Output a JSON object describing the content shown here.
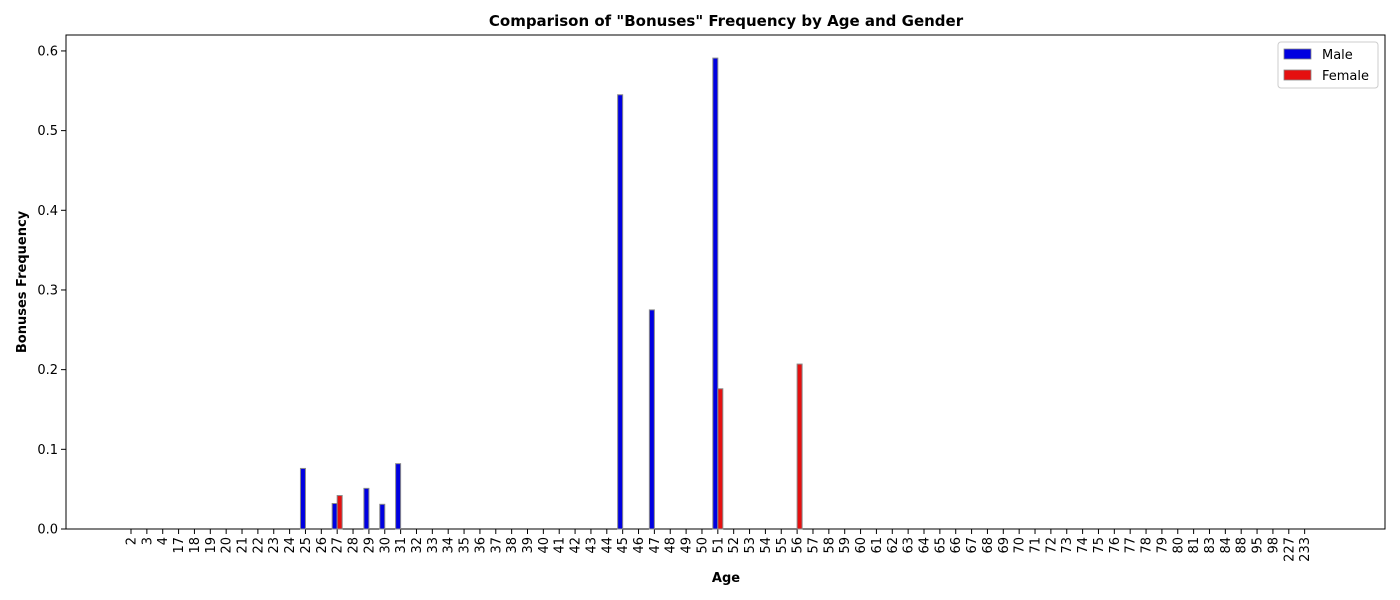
{
  "chart_data": {
    "type": "bar",
    "title": "Comparison of \"Bonuses\" Frequency by Age and Gender",
    "xlabel": "Age",
    "ylabel": "Bonuses Frequency",
    "ylim": [
      0,
      0.62
    ],
    "yticks": [
      0.0,
      0.1,
      0.2,
      0.3,
      0.4,
      0.5,
      0.6
    ],
    "ytick_labels": [
      "0.0",
      "0.1",
      "0.2",
      "0.3",
      "0.4",
      "0.5",
      "0.6"
    ],
    "grid": false,
    "legend_position": "top-right",
    "categories": [
      "2",
      "3",
      "4",
      "17",
      "18",
      "19",
      "20",
      "21",
      "22",
      "23",
      "24",
      "25",
      "26",
      "27",
      "28",
      "29",
      "30",
      "31",
      "32",
      "33",
      "34",
      "35",
      "36",
      "37",
      "38",
      "39",
      "40",
      "41",
      "42",
      "43",
      "44",
      "45",
      "46",
      "47",
      "48",
      "49",
      "50",
      "51",
      "52",
      "53",
      "54",
      "55",
      "56",
      "57",
      "58",
      "59",
      "60",
      "61",
      "62",
      "63",
      "64",
      "65",
      "66",
      "67",
      "68",
      "69",
      "70",
      "71",
      "72",
      "73",
      "74",
      "75",
      "76",
      "77",
      "78",
      "79",
      "80",
      "81",
      "83",
      "84",
      "88",
      "95",
      "98",
      "227",
      "233"
    ],
    "series": [
      {
        "name": "Male",
        "color": "#0000e0",
        "values": [
          0,
          0,
          0,
          0,
          0,
          0,
          0,
          0,
          0,
          0,
          0,
          0.076,
          0,
          0.032,
          0,
          0.051,
          0.031,
          0.082,
          0,
          0,
          0,
          0,
          0,
          0,
          0,
          0,
          0,
          0,
          0,
          0,
          0,
          0.545,
          0,
          0.275,
          0,
          0,
          0,
          0.591,
          0,
          0,
          0,
          0,
          0,
          0,
          0,
          0,
          0,
          0,
          0,
          0,
          0,
          0,
          0,
          0,
          0,
          0,
          0,
          0,
          0,
          0,
          0,
          0,
          0,
          0,
          0,
          0,
          0,
          0,
          0,
          0,
          0,
          0,
          0,
          0,
          0
        ]
      },
      {
        "name": "Female",
        "color": "#e51010",
        "values": [
          0,
          0,
          0,
          0,
          0,
          0,
          0,
          0,
          0,
          0,
          0,
          0,
          0,
          0.042,
          0,
          0,
          0,
          0,
          0,
          0,
          0,
          0,
          0,
          0,
          0,
          0,
          0,
          0,
          0,
          0,
          0,
          0,
          0,
          0,
          0,
          0,
          0,
          0.176,
          0,
          0,
          0,
          0,
          0.207,
          0,
          0,
          0,
          0,
          0,
          0,
          0,
          0,
          0,
          0,
          0,
          0,
          0,
          0,
          0,
          0,
          0,
          0,
          0,
          0,
          0,
          0,
          0,
          0,
          0,
          0,
          0,
          0,
          0,
          0,
          0,
          0
        ]
      }
    ]
  }
}
